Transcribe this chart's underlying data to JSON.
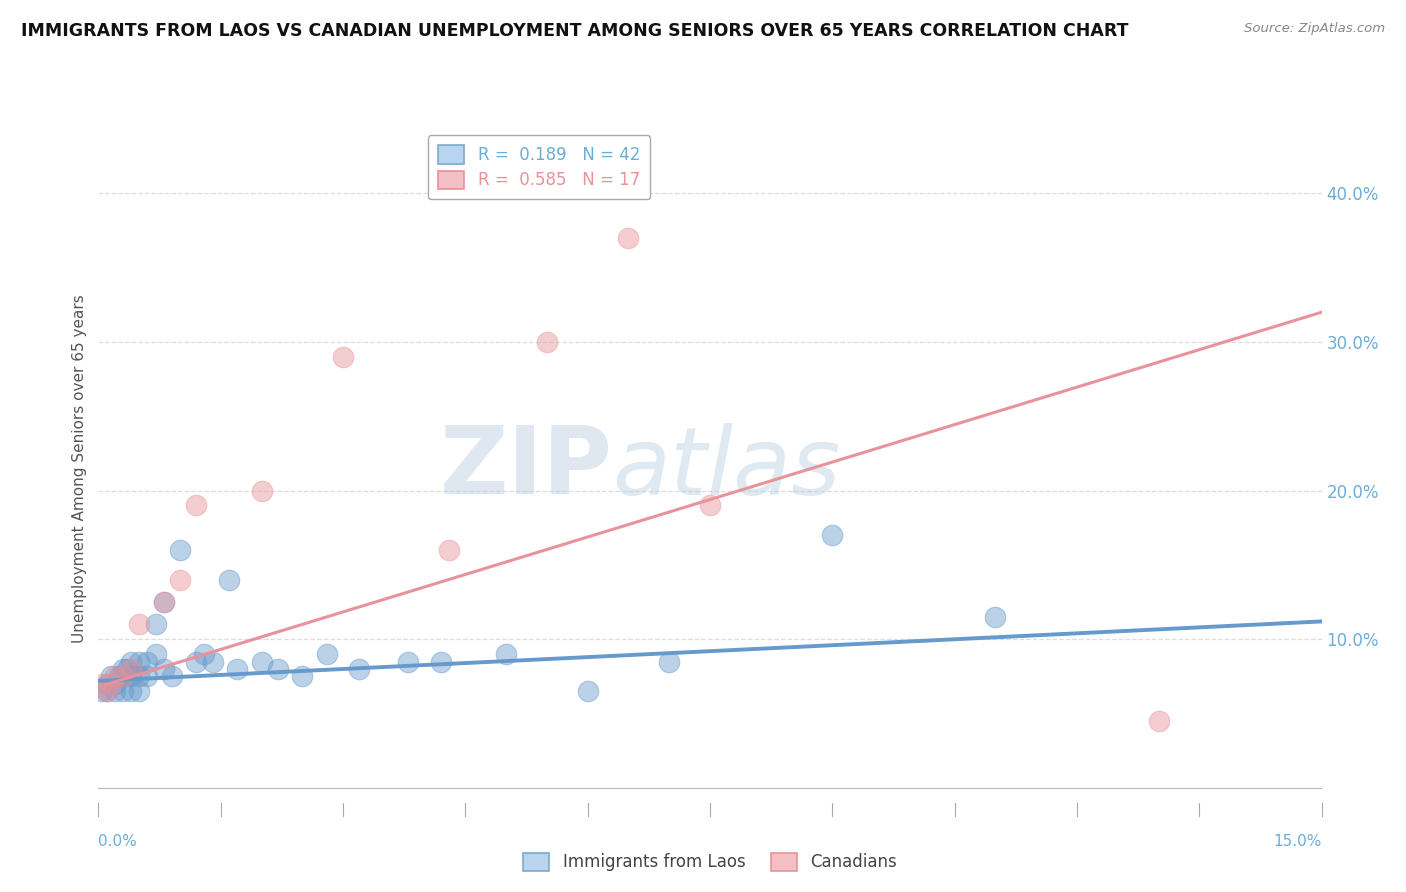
{
  "title": "IMMIGRANTS FROM LAOS VS CANADIAN UNEMPLOYMENT AMONG SENIORS OVER 65 YEARS CORRELATION CHART",
  "source": "Source: ZipAtlas.com",
  "xlabel_bottom_left": "0.0%",
  "xlabel_bottom_right": "15.0%",
  "ylabel": "Unemployment Among Seniors over 65 years",
  "legend_entries": [
    {
      "label": "R =  0.189   N = 42",
      "color": "#6baed6"
    },
    {
      "label": "R =  0.585   N = 17",
      "color": "#fb9a99"
    }
  ],
  "legend_x_labels": [
    "Immigrants from Laos",
    "Canadians"
  ],
  "xmin": 0.0,
  "xmax": 0.15,
  "ymin": -0.01,
  "ymax": 0.44,
  "yticks": [
    0.0,
    0.1,
    0.2,
    0.3,
    0.4
  ],
  "ytick_labels": [
    "",
    "10.0%",
    "20.0%",
    "30.0%",
    "40.0%"
  ],
  "watermark_zip": "ZIP",
  "watermark_atlas": "atlas",
  "watermark_color": "#c8d8e8",
  "background_color": "#ffffff",
  "blue_color": "#6699cc",
  "pink_color": "#e8929a",
  "blue_scatter_x": [
    0.0005,
    0.001,
    0.001,
    0.0015,
    0.002,
    0.002,
    0.0025,
    0.003,
    0.003,
    0.003,
    0.0035,
    0.004,
    0.004,
    0.004,
    0.005,
    0.005,
    0.005,
    0.006,
    0.006,
    0.007,
    0.007,
    0.008,
    0.008,
    0.009,
    0.01,
    0.012,
    0.013,
    0.014,
    0.016,
    0.017,
    0.02,
    0.022,
    0.025,
    0.028,
    0.032,
    0.038,
    0.042,
    0.05,
    0.06,
    0.07,
    0.09,
    0.11
  ],
  "blue_scatter_y": [
    0.065,
    0.07,
    0.065,
    0.075,
    0.07,
    0.065,
    0.075,
    0.08,
    0.075,
    0.065,
    0.08,
    0.085,
    0.075,
    0.065,
    0.085,
    0.065,
    0.075,
    0.085,
    0.075,
    0.09,
    0.11,
    0.125,
    0.08,
    0.075,
    0.16,
    0.085,
    0.09,
    0.085,
    0.14,
    0.08,
    0.085,
    0.08,
    0.075,
    0.09,
    0.08,
    0.085,
    0.085,
    0.09,
    0.065,
    0.085,
    0.17,
    0.115
  ],
  "pink_scatter_x": [
    0.0005,
    0.001,
    0.0015,
    0.002,
    0.003,
    0.004,
    0.005,
    0.008,
    0.01,
    0.012,
    0.02,
    0.03,
    0.043,
    0.055,
    0.065,
    0.075,
    0.13
  ],
  "pink_scatter_y": [
    0.07,
    0.065,
    0.07,
    0.075,
    0.075,
    0.08,
    0.11,
    0.125,
    0.14,
    0.19,
    0.2,
    0.29,
    0.16,
    0.3,
    0.37,
    0.19,
    0.045
  ],
  "blue_trend_x": [
    0.0,
    0.15
  ],
  "blue_trend_y": [
    0.072,
    0.112
  ],
  "pink_trend_x": [
    0.0,
    0.15
  ],
  "pink_trend_y": [
    0.068,
    0.32
  ],
  "grid_color": "#dddddd",
  "tick_label_color": "#6baed6",
  "ylabel_color": "#555555",
  "title_color": "#111111",
  "source_color": "#888888"
}
